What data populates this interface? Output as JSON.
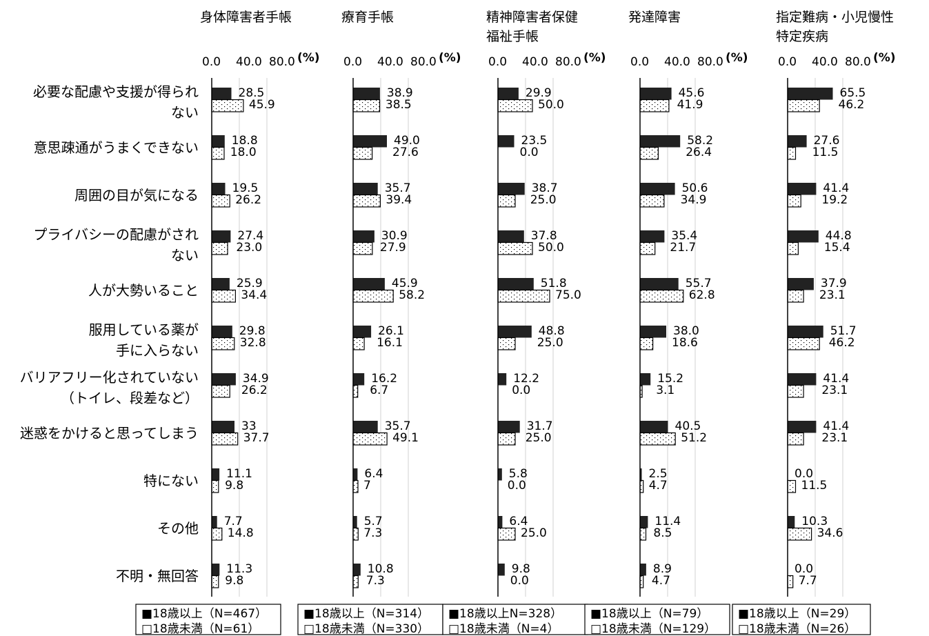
{
  "chart_data": {
    "type": "bar",
    "orientation": "horizontal",
    "unit": "(%)",
    "categories": [
      [
        "必要な配慮や支援が得られ",
        "ない"
      ],
      [
        "意思疎通がうまくできない"
      ],
      [
        "周囲の目が気になる"
      ],
      [
        "プライバシーの配慮がされ",
        "ない"
      ],
      [
        "人が大勢いること"
      ],
      [
        "服用している薬が",
        "手に入らない"
      ],
      [
        "バリアフリー化されていない",
        "（トイレ、段差など）"
      ],
      [
        "迷惑をかけると思ってしまう"
      ],
      [
        "特にない"
      ],
      [
        "その他"
      ],
      [
        "不明・無回答"
      ]
    ],
    "x_ticks": [
      "0.0",
      "40.0",
      "80.0"
    ],
    "xlim": [
      0,
      100
    ],
    "panels": [
      {
        "title": [
          "身体障害者手帳"
        ],
        "series": [
          {
            "legend": "■18歳以上（N=467）",
            "values": [
              28.5,
              18.8,
              19.5,
              27.4,
              25.9,
              29.8,
              34.9,
              33,
              11.1,
              7.7,
              11.3
            ],
            "labels": [
              "28.5",
              "18.8",
              "19.5",
              "27.4",
              "25.9",
              "29.8",
              "34.9",
              "33",
              "11.1",
              "7.7",
              "11.3"
            ]
          },
          {
            "legend": "□18歳未満（N=61）",
            "values": [
              45.9,
              18.0,
              26.2,
              23.0,
              34.4,
              32.8,
              26.2,
              37.7,
              9.8,
              14.8,
              9.8
            ],
            "labels": [
              "45.9",
              "18.0",
              "26.2",
              "23.0",
              "34.4",
              "32.8",
              "26.2",
              "37.7",
              "9.8",
              "14.8",
              "9.8"
            ]
          }
        ]
      },
      {
        "title": [
          "療育手帳"
        ],
        "series": [
          {
            "legend": "■18歳以上（N=314）",
            "values": [
              38.9,
              49.0,
              35.7,
              30.9,
              45.9,
              26.1,
              16.2,
              35.7,
              6.4,
              5.7,
              10.8
            ],
            "labels": [
              "38.9",
              "49.0",
              "35.7",
              "30.9",
              "45.9",
              "26.1",
              "16.2",
              "35.7",
              "6.4",
              "5.7",
              "10.8"
            ]
          },
          {
            "legend": "□18歳未満（N=330）",
            "values": [
              38.5,
              27.6,
              39.4,
              27.9,
              58.2,
              16.1,
              6.7,
              49.1,
              7,
              7.3,
              7.3
            ],
            "labels": [
              "38.5",
              "27.6",
              "39.4",
              "27.9",
              "58.2",
              "16.1",
              "6.7",
              "49.1",
              "7",
              "7.3",
              "7.3"
            ]
          }
        ]
      },
      {
        "title": [
          "精神障害者保健",
          "福祉手帳"
        ],
        "series": [
          {
            "legend": "■18歳以上N=328）",
            "values": [
              29.9,
              23.5,
              38.7,
              37.8,
              51.8,
              48.8,
              12.2,
              31.7,
              5.8,
              6.4,
              9.8
            ],
            "labels": [
              "29.9",
              "23.5",
              "38.7",
              "37.8",
              "51.8",
              "48.8",
              "12.2",
              "31.7",
              "5.8",
              "6.4",
              "9.8"
            ]
          },
          {
            "legend": "□18歳未満（N=4）",
            "values": [
              50.0,
              0.0,
              25.0,
              50.0,
              75.0,
              25.0,
              0.0,
              25.0,
              0.0,
              25.0,
              0.0
            ],
            "labels": [
              "50.0",
              "0.0",
              "25.0",
              "50.0",
              "75.0",
              "25.0",
              "0.0",
              "25.0",
              "0.0",
              "25.0",
              "0.0"
            ]
          }
        ]
      },
      {
        "title": [
          "発達障害"
        ],
        "series": [
          {
            "legend": "■18歳以上（N=79）",
            "values": [
              45.6,
              58.2,
              50.6,
              35.4,
              55.7,
              38.0,
              15.2,
              40.5,
              2.5,
              11.4,
              8.9
            ],
            "labels": [
              "45.6",
              "58.2",
              "50.6",
              "35.4",
              "55.7",
              "38.0",
              "15.2",
              "40.5",
              "2.5",
              "11.4",
              "8.9"
            ]
          },
          {
            "legend": "□18歳未満（N=129）",
            "values": [
              41.9,
              26.4,
              34.9,
              21.7,
              62.8,
              18.6,
              3.1,
              51.2,
              4.7,
              8.5,
              4.7
            ],
            "labels": [
              "41.9",
              "26.4",
              "34.9",
              "21.7",
              "62.8",
              "18.6",
              "3.1",
              "51.2",
              "4.7",
              "8.5",
              "4.7"
            ]
          }
        ]
      },
      {
        "title": [
          "指定難病・小児慢性",
          "特定疾病"
        ],
        "series": [
          {
            "legend": "■18歳以上（N=29）",
            "values": [
              65.5,
              27.6,
              41.4,
              44.8,
              37.9,
              51.7,
              41.4,
              41.4,
              0.0,
              10.3,
              0.0
            ],
            "labels": [
              "65.5",
              "27.6",
              "41.4",
              "44.8",
              "37.9",
              "51.7",
              "41.4",
              "41.4",
              "0.0",
              "10.3",
              "0.0"
            ]
          },
          {
            "legend": "□18歳未満（N=26）",
            "values": [
              46.2,
              11.5,
              19.2,
              15.4,
              23.1,
              46.2,
              23.1,
              23.1,
              11.5,
              34.6,
              7.7
            ],
            "labels": [
              "46.2",
              "11.5",
              "19.2",
              "15.4",
              "23.1",
              "46.2",
              "23.1",
              "23.1",
              "11.5",
              "34.6",
              "7.7"
            ]
          }
        ]
      }
    ]
  }
}
